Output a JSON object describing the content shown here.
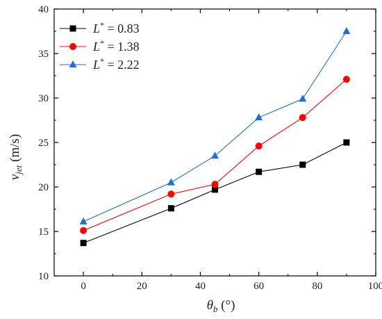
{
  "chart_data": {
    "type": "line",
    "title": "",
    "xlabel": {
      "symbol": "θ",
      "sub": "b",
      "unit": "(°)"
    },
    "ylabel": {
      "symbol": "v",
      "sub": "jet",
      "unit": "(m/s)"
    },
    "xlim": [
      -10,
      100
    ],
    "ylim": [
      10,
      40
    ],
    "xticks": [
      0,
      20,
      40,
      60,
      80,
      100
    ],
    "yticks": [
      10,
      15,
      20,
      25,
      30,
      35,
      40
    ],
    "grid": false,
    "legend_position": "top-left",
    "x": [
      0,
      30,
      45,
      60,
      75,
      90
    ],
    "series": [
      {
        "name_var": "L",
        "name_sup": "*",
        "name_rest": " = 0.83",
        "color": "#000000",
        "marker": "square",
        "values": [
          13.7,
          17.6,
          19.7,
          21.7,
          22.5,
          25.0
        ]
      },
      {
        "name_var": "L",
        "name_sup": "*",
        "name_rest": " = 1.38",
        "color": "#ff0000",
        "marker": "circle",
        "values": [
          15.1,
          19.2,
          20.3,
          24.6,
          27.8,
          32.1
        ]
      },
      {
        "name_var": "L",
        "name_sup": "*",
        "name_rest": " = 2.22",
        "color": "#1f6fd6",
        "marker": "triangle",
        "values": [
          16.1,
          20.5,
          23.5,
          27.8,
          29.9,
          37.5
        ]
      }
    ]
  }
}
